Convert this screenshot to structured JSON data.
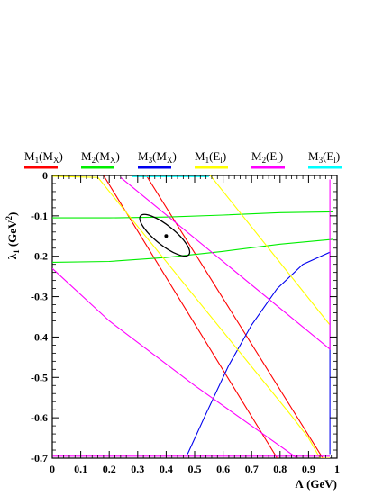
{
  "chart_data": {
    "type": "line",
    "xlabel": "Λ (GeV)",
    "ylabel": "λ",
    "ylabel_sub": "1",
    "ylabel_unit": "(GeV",
    "ylabel_sup": "2",
    "ylabel_close": ")",
    "xlim": [
      0,
      1.0
    ],
    "ylim": [
      -0.7,
      0
    ],
    "x_ticks": [
      {
        "value": 0,
        "label": "0"
      },
      {
        "value": 0.1,
        "label": "0.1"
      },
      {
        "value": 0.2,
        "label": "0.2"
      },
      {
        "value": 0.3,
        "label": "0.3"
      },
      {
        "value": 0.4,
        "label": "0.4"
      },
      {
        "value": 0.5,
        "label": "0.5"
      },
      {
        "value": 0.6,
        "label": "0.6"
      },
      {
        "value": 0.7,
        "label": "0.7"
      },
      {
        "value": 0.8,
        "label": "0.8"
      },
      {
        "value": 0.9,
        "label": "0.9"
      },
      {
        "value": 1.0,
        "label": "1"
      }
    ],
    "y_ticks": [
      {
        "value": 0,
        "label": "0"
      },
      {
        "value": -0.1,
        "label": "-0.1"
      },
      {
        "value": -0.2,
        "label": "-0.2"
      },
      {
        "value": -0.3,
        "label": "-0.3"
      },
      {
        "value": -0.4,
        "label": "-0.4"
      },
      {
        "value": -0.5,
        "label": "-0.5"
      },
      {
        "value": -0.6,
        "label": "-0.6"
      },
      {
        "value": -0.7,
        "label": "-0.7"
      }
    ],
    "legend": [
      {
        "main": "M",
        "sub1": "1",
        "mid": "(M",
        "sub2": "X",
        "close": ")",
        "color": "#ff0000"
      },
      {
        "main": "M",
        "sub1": "2",
        "mid": "(M",
        "sub2": "X",
        "close": ")",
        "color": "#00ee00"
      },
      {
        "main": "M",
        "sub1": "3",
        "mid": "(M",
        "sub2": "X",
        "close": ")",
        "color": "#0000ee"
      },
      {
        "main": "M",
        "sub1": "1",
        "mid": "(E",
        "sub2": "l",
        "close": ")",
        "color": "#ffff00"
      },
      {
        "main": "M",
        "sub1": "2",
        "mid": "(E",
        "sub2": "l",
        "close": ")",
        "color": "#ff00ff"
      },
      {
        "main": "M",
        "sub1": "3",
        "mid": "(E",
        "sub2": "l",
        "close": ")",
        "color": "#00ffff"
      }
    ],
    "series": [
      {
        "legend_index": 0,
        "color": "#ff0000",
        "points": [
          [
            0.18,
            0.0
          ],
          [
            0.79,
            -0.7
          ]
        ]
      },
      {
        "legend_index": 0,
        "color": "#ff0000",
        "points": [
          [
            0.33,
            0.0
          ],
          [
            0.95,
            -0.7
          ]
        ]
      },
      {
        "legend_index": 1,
        "color": "#00ee00",
        "points": [
          [
            0.0,
            -0.105
          ],
          [
            0.2,
            -0.105
          ],
          [
            0.4,
            -0.103
          ],
          [
            0.6,
            -0.098
          ],
          [
            0.8,
            -0.092
          ],
          [
            0.985,
            -0.09
          ]
        ]
      },
      {
        "legend_index": 1,
        "color": "#00ee00",
        "points": [
          [
            0.0,
            -0.215
          ],
          [
            0.2,
            -0.213
          ],
          [
            0.4,
            -0.203
          ],
          [
            0.6,
            -0.188
          ],
          [
            0.8,
            -0.17
          ],
          [
            0.985,
            -0.158
          ]
        ]
      },
      {
        "legend_index": 2,
        "color": "#0000ee",
        "points": [
          [
            0.475,
            -0.69
          ],
          [
            0.54,
            -0.59
          ],
          [
            0.62,
            -0.47
          ],
          [
            0.7,
            -0.37
          ],
          [
            0.79,
            -0.28
          ],
          [
            0.88,
            -0.22
          ],
          [
            0.975,
            -0.19
          ],
          [
            0.975,
            -0.69
          ]
        ]
      },
      {
        "legend_index": 3,
        "color": "#ffff00",
        "points": [
          [
            0.0,
            -0.002
          ],
          [
            0.16,
            -0.005
          ],
          [
            0.84,
            -0.595
          ],
          [
            0.9,
            -0.65
          ],
          [
            0.94,
            -0.7
          ],
          [
            0.985,
            -0.7
          ]
        ]
      },
      {
        "legend_index": 3,
        "color": "#ffff00",
        "points": [
          [
            0.555,
            0.0
          ],
          [
            0.975,
            -0.37
          ]
        ]
      },
      {
        "legend_index": 4,
        "color": "#ff00ff",
        "points": [
          [
            0.0,
            -0.23
          ],
          [
            0.2,
            -0.36
          ],
          [
            0.5,
            -0.52
          ],
          [
            0.74,
            -0.64
          ],
          [
            0.86,
            -0.7
          ]
        ]
      },
      {
        "legend_index": 4,
        "color": "#ff00ff",
        "points": [
          [
            0.24,
            -0.005
          ],
          [
            0.975,
            -0.43
          ],
          [
            0.975,
            -0.01
          ]
        ]
      },
      {
        "legend_index": 4,
        "color": "#ff00ff",
        "points": [
          [
            0.0,
            -0.695
          ],
          [
            0.975,
            -0.695
          ]
        ]
      },
      {
        "legend_index": 5,
        "color": "#00ffff",
        "points": [
          [
            0.28,
            -0.003
          ],
          [
            0.55,
            -0.003
          ]
        ]
      }
    ],
    "contour": {
      "color": "#000000",
      "center": [
        0.395,
        -0.148
      ],
      "major_axis_end": [
        0.31,
        -0.1
      ],
      "minor_axis_end": [
        0.405,
        -0.125
      ],
      "points": [
        [
          0.3,
          -0.097
        ],
        [
          0.31,
          -0.08
        ],
        [
          0.34,
          -0.092
        ],
        [
          0.41,
          -0.145
        ],
        [
          0.46,
          -0.19
        ],
        [
          0.47,
          -0.21
        ],
        [
          0.45,
          -0.215
        ],
        [
          0.39,
          -0.175
        ],
        [
          0.32,
          -0.125
        ],
        [
          0.3,
          -0.097
        ]
      ]
    },
    "best_fit": [
      0.4,
      -0.15
    ]
  }
}
